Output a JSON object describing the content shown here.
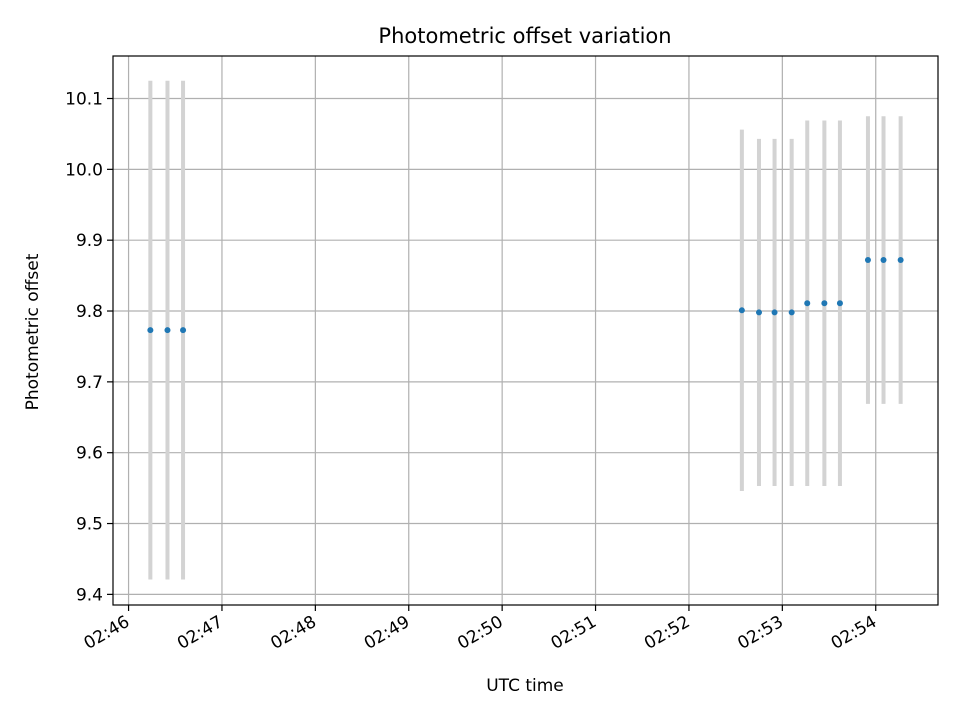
{
  "chart_data": {
    "type": "scatter",
    "title": "Photometric offset variation",
    "xlabel": "UTC time",
    "ylabel": "Photometric offset",
    "grid": true,
    "xlim": [
      "02:45:50",
      "02:54:40"
    ],
    "ylim": [
      9.385,
      10.16
    ],
    "xticks": [
      "02:46",
      "02:47",
      "02:48",
      "02:49",
      "02:50",
      "02:51",
      "02:52",
      "02:53",
      "02:54"
    ],
    "yticks": [
      "9.4",
      "9.5",
      "9.6",
      "9.7",
      "9.8",
      "9.9",
      "10.0",
      "10.1"
    ],
    "point_color": "#1f77b4",
    "errorbar_color": "#d3d3d3",
    "series": [
      {
        "x": [
          "02:46:14",
          "02:46:25",
          "02:46:35",
          "02:52:34",
          "02:52:45",
          "02:52:55",
          "02:53:06",
          "02:53:16",
          "02:53:27",
          "02:53:37",
          "02:53:55",
          "02:54:05",
          "02:54:16"
        ],
        "y": [
          9.773,
          9.773,
          9.773,
          9.801,
          9.798,
          9.798,
          9.798,
          9.811,
          9.811,
          9.811,
          9.872,
          9.872,
          9.872
        ],
        "yerr": [
          0.352,
          0.352,
          0.352,
          0.255,
          0.245,
          0.245,
          0.245,
          0.258,
          0.258,
          0.258,
          0.203,
          0.203,
          0.203
        ]
      }
    ]
  }
}
